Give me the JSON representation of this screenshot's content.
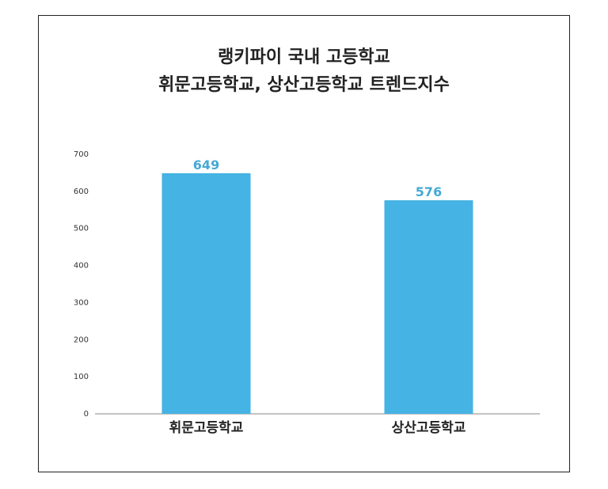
{
  "title_line1": "랭키파이 국내 고등학교",
  "title_line2": "휘문고등학교, 상산고등학교 트렌드지수",
  "chart_data": {
    "type": "bar",
    "title": "랭키파이 국내 고등학교 휘문고등학교, 상산고등학교 트렌드지수",
    "categories": [
      "휘문고등학교",
      "상산고등학교"
    ],
    "values": [
      649,
      576
    ],
    "value_labels": [
      "649",
      "576"
    ],
    "xlabel": "",
    "ylabel": "",
    "ylim": [
      0,
      700
    ],
    "yticks": [
      0,
      100,
      200,
      300,
      400,
      500,
      600,
      700
    ],
    "grid": false,
    "legend": "none",
    "bar_color": "#45b3e3",
    "label_color": "#45a9d6"
  }
}
